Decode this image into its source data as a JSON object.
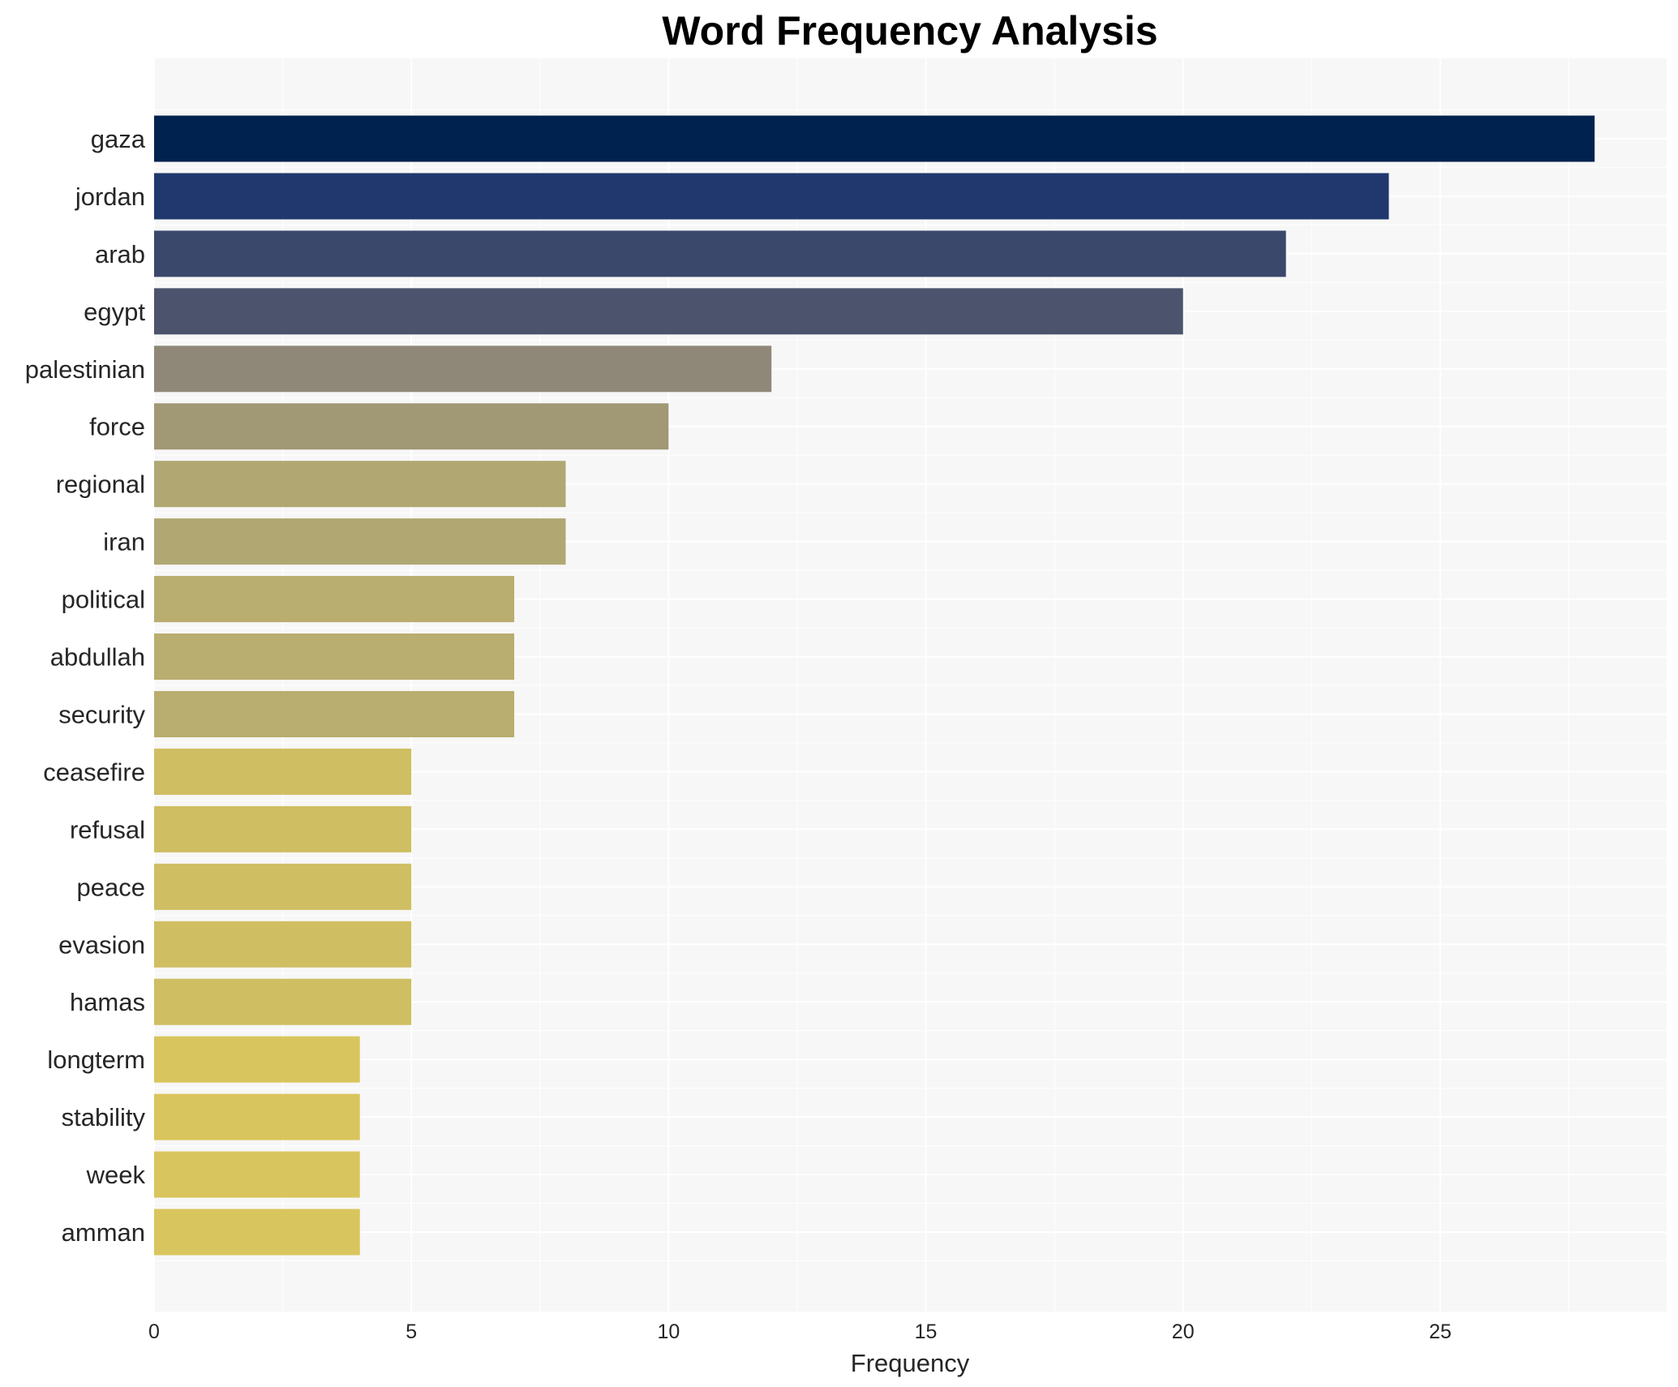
{
  "chart_data": {
    "type": "bar",
    "orientation": "horizontal",
    "title": "Word Frequency Analysis",
    "xlabel": "Frequency",
    "ylabel": "",
    "xlim": [
      0,
      29.4
    ],
    "xticks": [
      0,
      5,
      10,
      15,
      20,
      25
    ],
    "grid": true,
    "background": "#f7f7f7",
    "categories": [
      "gaza",
      "jordan",
      "arab",
      "egypt",
      "palestinian",
      "force",
      "regional",
      "iran",
      "political",
      "abdullah",
      "security",
      "ceasefire",
      "refusal",
      "peace",
      "evasion",
      "hamas",
      "longterm",
      "stability",
      "week",
      "amman"
    ],
    "values": [
      28,
      24,
      22,
      20,
      12,
      10,
      8,
      8,
      7,
      7,
      7,
      5,
      5,
      5,
      5,
      5,
      4,
      4,
      4,
      4
    ],
    "colors": [
      "#00224e",
      "#20386e",
      "#39486b",
      "#4b546c",
      "#8f8878",
      "#a19876",
      "#b1a772",
      "#b1a772",
      "#b9ad6f",
      "#b9ad6f",
      "#b9ad6f",
      "#cfbe62",
      "#cfbe62",
      "#cfbe62",
      "#cfbe62",
      "#cfbe62",
      "#d9c55d",
      "#d9c55d",
      "#d9c55d",
      "#d9c55d"
    ]
  }
}
